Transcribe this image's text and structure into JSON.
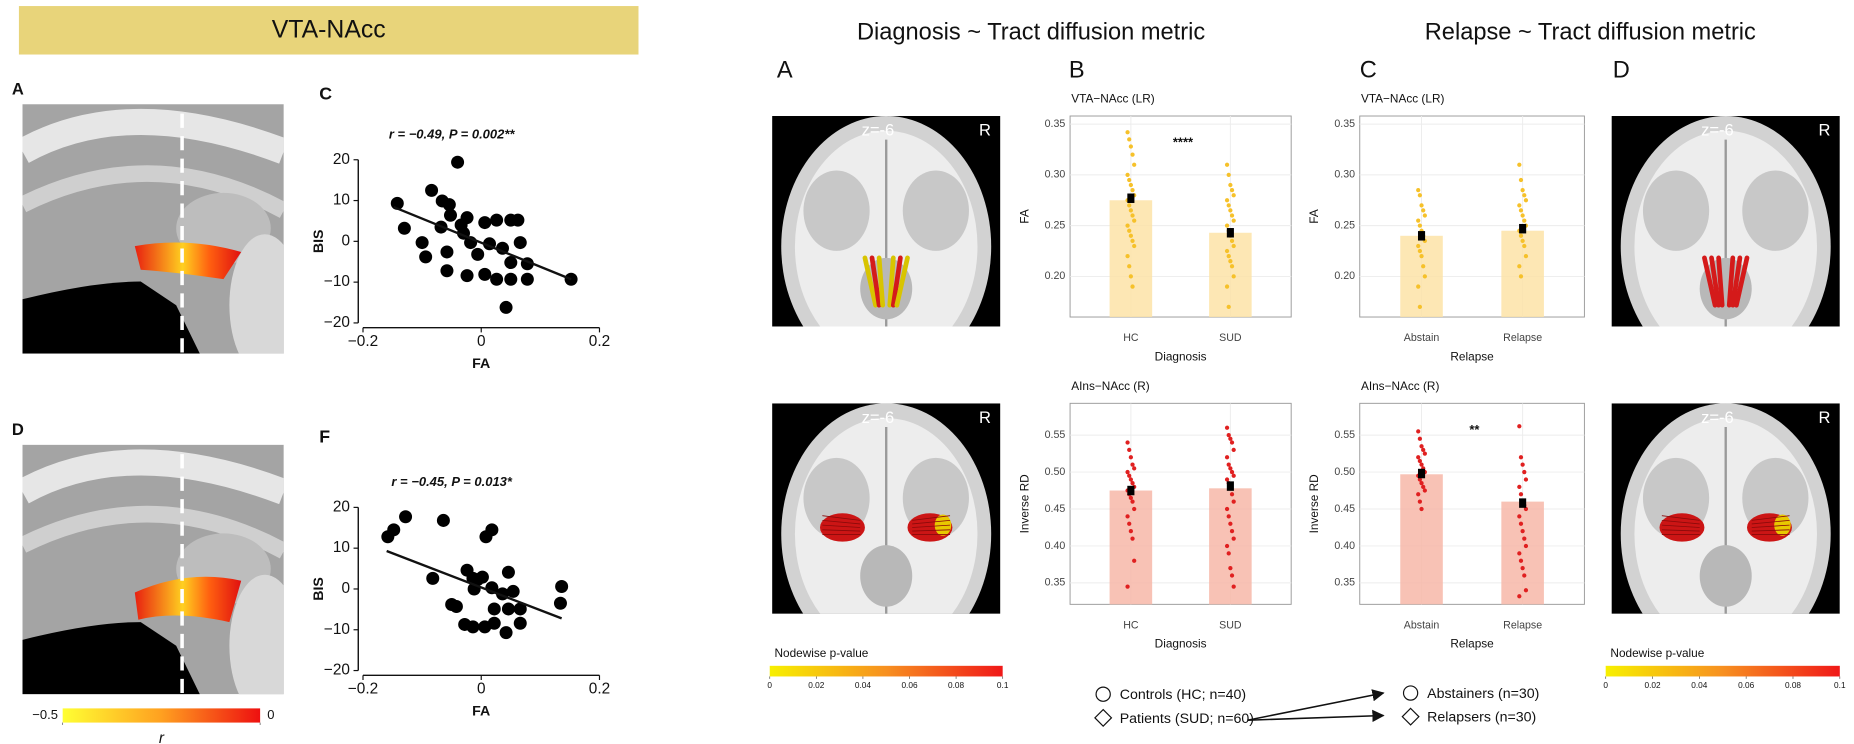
{
  "banner": "VTA-NAcc",
  "headings": [
    "Diagnosis ~ Tract diffusion metric",
    "Relapse ~ Tract diffusion metric"
  ],
  "panel_letters": {
    "left": [
      "A",
      "C",
      "D",
      "F"
    ],
    "right": [
      "A",
      "B",
      "C",
      "D"
    ]
  },
  "brains": [
    {
      "slice": "z=-6",
      "side": "R"
    },
    {
      "slice": "z=-6",
      "side": "R"
    },
    {
      "slice": "z=-6",
      "side": "R"
    },
    {
      "slice": "z=-6",
      "side": "R"
    }
  ],
  "colorbars": [
    {
      "label": "r",
      "ticks": [
        {
          "value": -0.5,
          "label": "−0.5"
        },
        0
      ]
    },
    {
      "title": "Nodewise p-value",
      "ticks": [
        0,
        0.02,
        0.04,
        0.06,
        0.08,
        0.1
      ]
    },
    {
      "title": "Nodewise p-value",
      "ticks": [
        0,
        0.02,
        0.04,
        0.06,
        0.08,
        0.1
      ]
    }
  ],
  "legend": {
    "groups": [
      {
        "marker": "circle",
        "label": "Controls (HC; n=40)"
      },
      {
        "marker": "diamond",
        "label": "Patients (SUD; n=60)"
      },
      {
        "marker": "circle",
        "label": "Abstainers (n=30)"
      },
      {
        "marker": "diamond",
        "label": "Relapsers (n=30)"
      }
    ]
  },
  "chart_data": [
    {
      "type": "scatter",
      "title": "r = −0.49, P = 0.002**",
      "x_label": "FA",
      "y_label": "BIS",
      "color": "#000000",
      "x": [
        -0.142,
        -0.13,
        -0.084,
        -0.04,
        -0.066,
        -0.054,
        -0.052,
        -0.034,
        -0.024,
        -0.068,
        -0.1,
        -0.094,
        -0.058,
        -0.03,
        -0.018,
        0.006,
        0.026,
        0.05,
        0.062,
        -0.006,
        0.014,
        0.036,
        0.05,
        0.066,
        -0.024,
        0.006,
        0.026,
        0.05,
        0.078,
        0.078,
        0.152,
        0.042,
        -0.058
      ],
      "y": [
        9.3,
        3.2,
        12.5,
        19.4,
        9.9,
        9,
        6.4,
        4,
        5.8,
        3.5,
        -0.3,
        -3.8,
        -2.6,
        2,
        -0.3,
        4.6,
        5.2,
        5.2,
        5.2,
        -3.2,
        -0.6,
        -1.7,
        -5.2,
        -0.3,
        -8.4,
        -8.1,
        -9.3,
        -9.3,
        -5.5,
        -9.3,
        -9.3,
        -16.2,
        -7.2
      ],
      "fit": {
        "x": [
          -0.148,
          0.152
        ],
        "y": [
          8.4,
          -9.3
        ]
      },
      "xlim": [
        -0.2,
        0.2
      ],
      "ylim": [
        -20,
        20
      ],
      "xticks": [
        {
          "value": -0.2,
          "label": "−0.2"
        },
        0,
        0.2
      ],
      "yticks": [
        {
          "value": -20,
          "label": "−20"
        },
        {
          "value": -10,
          "label": "−10"
        },
        0,
        10,
        20
      ]
    },
    {
      "type": "scatter",
      "title": "r = −0.45, P = 0.013*",
      "x_label": "FA",
      "y_label": "BIS",
      "color": "#000000",
      "x": [
        -0.158,
        -0.148,
        -0.128,
        -0.064,
        -0.082,
        0.018,
        0.008,
        -0.024,
        -0.014,
        -0.006,
        0.002,
        -0.012,
        0.018,
        -0.05,
        -0.042,
        -0.028,
        -0.014,
        0.006,
        0.022,
        0.036,
        0.046,
        0.054,
        0.046,
        0.066,
        0.066,
        0.042,
        0.022,
        0.136,
        0.134
      ],
      "y": [
        12.8,
        14.5,
        17.7,
        16.8,
        2.6,
        14.5,
        12.8,
        4.6,
        2.6,
        2.3,
        2.9,
        0,
        0.3,
        -3.8,
        -4.3,
        -8.7,
        -9.3,
        -9.3,
        -4.9,
        -1.2,
        4.1,
        -0.6,
        -4.9,
        -4.9,
        -8.4,
        -10.7,
        -8.4,
        0.6,
        -3.5
      ],
      "fit": {
        "x": [
          -0.16,
          0.136
        ],
        "y": [
          9.3,
          -7.2
        ]
      },
      "xlim": [
        -0.2,
        0.2
      ],
      "ylim": [
        -20,
        20
      ],
      "xticks": [
        {
          "value": -0.2,
          "label": "−0.2"
        },
        0,
        0.2
      ],
      "yticks": [
        {
          "value": -20,
          "label": "−20"
        },
        {
          "value": -10,
          "label": "−10"
        },
        0,
        10,
        20
      ]
    },
    {
      "type": "bar",
      "title": "VTA−NAcc (LR)",
      "x_label": "Diagnosis",
      "y_label": "FA",
      "annotation": "****",
      "categories": [
        "HC",
        "SUD"
      ],
      "values": [
        0.275,
        0.243
      ],
      "means": [
        0.277,
        0.243
      ],
      "points": [
        [
          0.342,
          0.335,
          0.328,
          0.32,
          0.31,
          0.3,
          0.295,
          0.29,
          0.285,
          0.28,
          0.275,
          0.27,
          0.265,
          0.26,
          0.255,
          0.25,
          0.245,
          0.24,
          0.235,
          0.23,
          0.22,
          0.21,
          0.2,
          0.19
        ],
        [
          0.31,
          0.3,
          0.29,
          0.285,
          0.28,
          0.275,
          0.27,
          0.265,
          0.26,
          0.255,
          0.25,
          0.245,
          0.24,
          0.235,
          0.23,
          0.225,
          0.22,
          0.215,
          0.21,
          0.2,
          0.19,
          0.17
        ]
      ],
      "color": "#fde3a7",
      "point_color": "#f6c12a",
      "grid": true,
      "ylim": [
        0.16,
        0.358
      ],
      "yticks": [
        {
          "value": 0.2,
          "label": "0.20"
        },
        0.25,
        {
          "value": 0.3,
          "label": "0.30"
        },
        0.35
      ]
    },
    {
      "type": "bar",
      "title": "AIns−NAcc (R)",
      "x_label": "Diagnosis",
      "y_label": "Inverse RD",
      "categories": [
        "HC",
        "SUD"
      ],
      "values": [
        0.475,
        0.478
      ],
      "means": [
        0.475,
        0.481
      ],
      "points": [
        [
          0.54,
          0.53,
          0.52,
          0.51,
          0.505,
          0.5,
          0.495,
          0.49,
          0.485,
          0.48,
          0.475,
          0.47,
          0.465,
          0.46,
          0.45,
          0.44,
          0.43,
          0.42,
          0.41,
          0.38,
          0.345
        ],
        [
          0.56,
          0.55,
          0.545,
          0.54,
          0.53,
          0.52,
          0.51,
          0.505,
          0.5,
          0.495,
          0.49,
          0.485,
          0.48,
          0.47,
          0.46,
          0.45,
          0.44,
          0.43,
          0.42,
          0.41,
          0.4,
          0.39,
          0.37,
          0.36,
          0.345
        ]
      ],
      "color": "#f7b7a8",
      "point_color": "#e02020",
      "grid": true,
      "ylim": [
        0.321,
        0.593
      ],
      "yticks": [
        0.35,
        {
          "value": 0.4,
          "label": "0.40"
        },
        0.45,
        {
          "value": 0.5,
          "label": "0.50"
        },
        0.55
      ]
    },
    {
      "type": "bar",
      "title": "VTA−NAcc (LR)",
      "x_label": "Relapse",
      "y_label": "FA",
      "categories": [
        "Abstain",
        "Relapse"
      ],
      "values": [
        0.24,
        0.245
      ],
      "means": [
        0.24,
        0.247
      ],
      "points": [
        [
          0.285,
          0.28,
          0.27,
          0.265,
          0.26,
          0.255,
          0.25,
          0.245,
          0.24,
          0.235,
          0.23,
          0.225,
          0.22,
          0.21,
          0.2,
          0.19,
          0.17
        ],
        [
          0.31,
          0.295,
          0.285,
          0.28,
          0.275,
          0.27,
          0.265,
          0.26,
          0.255,
          0.25,
          0.245,
          0.24,
          0.235,
          0.23,
          0.22,
          0.21,
          0.2
        ]
      ],
      "color": "#fde3a7",
      "point_color": "#f6c12a",
      "grid": true,
      "ylim": [
        0.16,
        0.358
      ],
      "yticks": [
        {
          "value": 0.2,
          "label": "0.20"
        },
        0.25,
        {
          "value": 0.3,
          "label": "0.30"
        },
        0.35
      ]
    },
    {
      "type": "bar",
      "title": "AIns−NAcc (R)",
      "x_label": "Relapse",
      "y_label": "Inverse RD",
      "annotation": "**",
      "categories": [
        "Abstain",
        "Relapse"
      ],
      "values": [
        0.497,
        0.46
      ],
      "means": [
        0.498,
        0.458
      ],
      "points": [
        [
          0.555,
          0.545,
          0.535,
          0.53,
          0.525,
          0.52,
          0.515,
          0.51,
          0.505,
          0.5,
          0.495,
          0.49,
          0.485,
          0.48,
          0.475,
          0.47,
          0.46,
          0.45
        ],
        [
          0.562,
          0.52,
          0.51,
          0.5,
          0.49,
          0.48,
          0.47,
          0.46,
          0.455,
          0.45,
          0.44,
          0.43,
          0.42,
          0.41,
          0.4,
          0.39,
          0.38,
          0.37,
          0.36,
          0.34,
          0.332
        ]
      ],
      "color": "#f7b7a8",
      "point_color": "#e02020",
      "grid": true,
      "ylim": [
        0.321,
        0.593
      ],
      "yticks": [
        0.35,
        {
          "value": 0.4,
          "label": "0.40"
        },
        0.45,
        {
          "value": 0.5,
          "label": "0.50"
        },
        0.55
      ]
    }
  ]
}
